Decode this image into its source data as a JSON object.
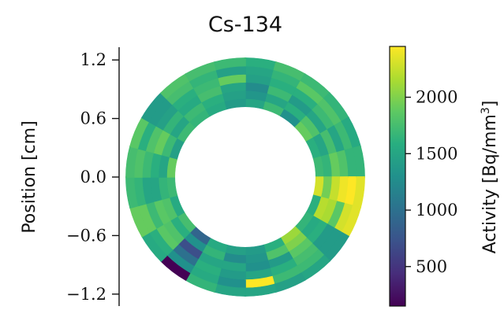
{
  "chart_data": {
    "type": "heatmap",
    "geometry": "annulus",
    "title": "Cs-134",
    "ylabel": "Position [cm]",
    "ylim": [
      -1.35,
      1.35
    ],
    "yticks": [
      1.2,
      0.6,
      0.0,
      -0.6,
      -1.2
    ],
    "ytick_labels": [
      "1.2",
      "0.6",
      "0.0",
      "−0.6",
      "−1.2"
    ],
    "inner_radius_cm": 0.72,
    "outer_radius_cm": 1.22,
    "rings": 6,
    "sectors": 24,
    "colorbar": {
      "label": "Activity [Bq/mm",
      "label_superscript": "3",
      "label_suffix": "]",
      "colormap": "viridis",
      "range": [
        150,
        2450
      ],
      "ticks": [
        500,
        1000,
        1500,
        2000
      ]
    },
    "values": [
      [
        1500,
        1700,
        1300,
        1900,
        1600,
        1700,
        2300,
        1600,
        1650,
        2100,
        1600,
        1400,
        1450,
        1550,
        900,
        1750,
        1550,
        1700,
        1900,
        1450,
        1700,
        1650,
        1550,
        1400
      ],
      [
        1350,
        1500,
        1600,
        1800,
        1500,
        1650,
        1950,
        2200,
        1550,
        2000,
        1800,
        1350,
        1250,
        1650,
        1300,
        1600,
        1800,
        1650,
        1500,
        1700,
        1500,
        1700,
        1600,
        1450
      ],
      [
        1250,
        1700,
        1400,
        1500,
        1750,
        1900,
        2250,
        2150,
        1600,
        1850,
        1400,
        1300,
        1500,
        1500,
        700,
        1800,
        1850,
        1500,
        1600,
        1900,
        1650,
        1550,
        1750,
        1500
      ],
      [
        1450,
        1600,
        1600,
        1700,
        1500,
        1800,
        2400,
        1850,
        1400,
        1750,
        1600,
        1500,
        1400,
        1600,
        1000,
        1850,
        1700,
        1500,
        1700,
        1800,
        1450,
        1600,
        1700,
        1900
      ],
      [
        1500,
        1650,
        1850,
        1800,
        1700,
        1650,
        2450,
        2300,
        1400,
        1700,
        1700,
        2450,
        1300,
        1550,
        1300,
        1600,
        1900,
        1650,
        1800,
        1600,
        1400,
        1750,
        1650,
        1450
      ],
      [
        1600,
        1750,
        1700,
        1650,
        1550,
        1650,
        2350,
        2350,
        1400,
        1500,
        1450,
        1500,
        1500,
        1650,
        150,
        1550,
        1900,
        1700,
        1750,
        1850,
        1400,
        1800,
        1750,
        1700
      ]
    ]
  }
}
